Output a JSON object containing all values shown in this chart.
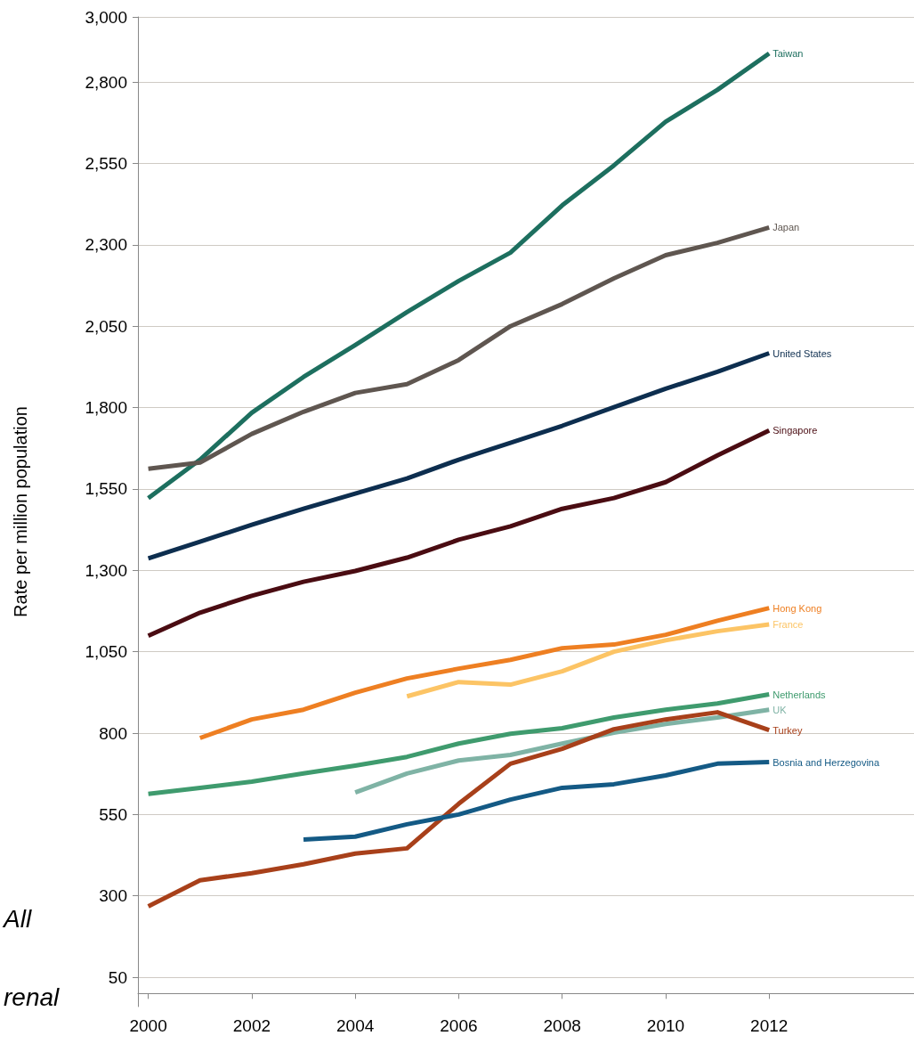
{
  "chart_data": {
    "type": "line",
    "ylabel": "Rate per million population",
    "annotations": [
      "All",
      "renal"
    ],
    "xlim": [
      1999.8,
      2014.8
    ],
    "xticks": [
      2000,
      2002,
      2004,
      2006,
      2008,
      2010,
      2012
    ],
    "ylim": [
      -40,
      3000
    ],
    "yticks": [
      {
        "value": 50,
        "label": "50"
      },
      {
        "value": 300,
        "label": "300"
      },
      {
        "value": 550,
        "label": "550"
      },
      {
        "value": 800,
        "label": "800"
      },
      {
        "value": 1050,
        "label": "1,050"
      },
      {
        "value": 1300,
        "label": "1,300"
      },
      {
        "value": 1550,
        "label": "1,550"
      },
      {
        "value": 1800,
        "label": "1,800"
      },
      {
        "value": 2050,
        "label": "2,050"
      },
      {
        "value": 2300,
        "label": "2,300"
      },
      {
        "value": 2550,
        "label": "2,550"
      },
      {
        "value": 2800,
        "label": "2,800"
      },
      {
        "value": 3000,
        "label": "3,000"
      }
    ],
    "grid": "y",
    "legend": false,
    "marker": "none",
    "line_style": "solid",
    "series": [
      {
        "name": "Taiwan",
        "color": "#1d6f5f",
        "x": [
          2000,
          2001,
          2002,
          2003,
          2004,
          2005,
          2006,
          2007,
          2008,
          2009,
          2010,
          2011,
          2012
        ],
        "values": [
          1522,
          1640,
          1784,
          1894,
          1992,
          2093,
          2189,
          2276,
          2421,
          2544,
          2678,
          2776,
          2888
        ]
      },
      {
        "name": "Japan",
        "color": "#5f5650",
        "x": [
          2000,
          2001,
          2002,
          2003,
          2004,
          2005,
          2006,
          2007,
          2008,
          2009,
          2010,
          2011,
          2012
        ],
        "values": [
          1612,
          1631,
          1719,
          1787,
          1845,
          1872,
          1946,
          2050,
          2118,
          2197,
          2268,
          2306,
          2353
        ]
      },
      {
        "name": "United States",
        "color": "#0d2e4f",
        "x": [
          2000,
          2001,
          2002,
          2003,
          2004,
          2005,
          2006,
          2007,
          2008,
          2009,
          2010,
          2011,
          2012
        ],
        "values": [
          1337,
          1388,
          1440,
          1489,
          1536,
          1582,
          1640,
          1692,
          1744,
          1801,
          1858,
          1910,
          1967
        ]
      },
      {
        "name": "Singapore",
        "color": "#4a0c12",
        "x": [
          2000,
          2001,
          2002,
          2003,
          2004,
          2005,
          2006,
          2007,
          2008,
          2009,
          2010,
          2011,
          2012
        ],
        "values": [
          1099,
          1170,
          1222,
          1265,
          1298,
          1339,
          1394,
          1435,
          1489,
          1522,
          1571,
          1653,
          1730
        ]
      },
      {
        "name": "Hong Kong",
        "color": "#ee7f22",
        "x": [
          2001,
          2002,
          2003,
          2004,
          2005,
          2006,
          2007,
          2008,
          2009,
          2010,
          2011,
          2012
        ],
        "values": [
          785,
          842,
          872,
          924,
          968,
          998,
          1025,
          1061,
          1072,
          1102,
          1145,
          1184
        ]
      },
      {
        "name": "France",
        "color": "#fcc465",
        "x": [
          2005,
          2006,
          2007,
          2008,
          2009,
          2010,
          2011,
          2012
        ],
        "values": [
          913,
          957,
          949,
          990,
          1050,
          1085,
          1113,
          1134
        ]
      },
      {
        "name": "Netherlands",
        "color": "#3f9b6e",
        "x": [
          2000,
          2001,
          2002,
          2003,
          2004,
          2005,
          2006,
          2007,
          2008,
          2009,
          2010,
          2011,
          2012
        ],
        "values": [
          613,
          632,
          651,
          676,
          700,
          727,
          768,
          798,
          815,
          848,
          872,
          891,
          919
        ]
      },
      {
        "name": "UK",
        "color": "#7fb3a5",
        "x": [
          2004,
          2005,
          2006,
          2007,
          2008,
          2009,
          2010,
          2011,
          2012
        ],
        "values": [
          618,
          676,
          716,
          733,
          768,
          801,
          828,
          848,
          872
        ]
      },
      {
        "name": "Turkey",
        "color": "#a8401a",
        "x": [
          2000,
          2001,
          2002,
          2003,
          2004,
          2005,
          2006,
          2007,
          2008,
          2009,
          2010,
          2011,
          2012
        ],
        "values": [
          268,
          348,
          370,
          397,
          430,
          446,
          583,
          706,
          752,
          812,
          842,
          864,
          809
        ]
      },
      {
        "name": "Bosnia and Herzegovina",
        "color": "#145a85",
        "x": [
          2003,
          2004,
          2005,
          2006,
          2007,
          2008,
          2009,
          2010,
          2011,
          2012
        ],
        "values": [
          473,
          482,
          520,
          550,
          596,
          632,
          643,
          670,
          706,
          711
        ]
      }
    ]
  }
}
